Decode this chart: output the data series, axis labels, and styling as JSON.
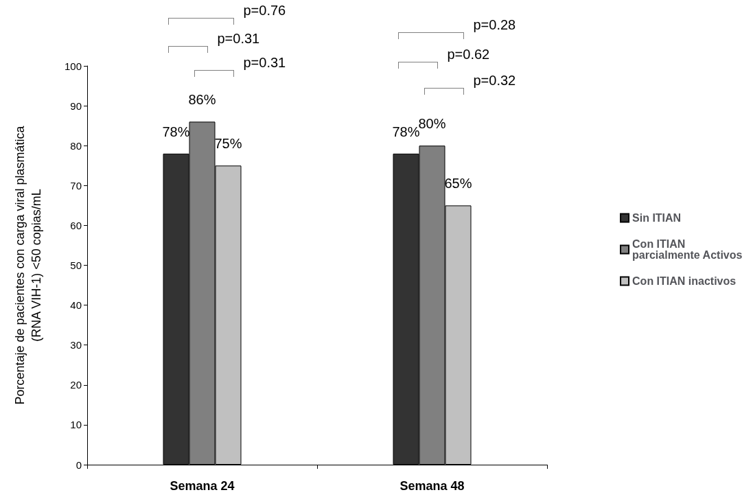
{
  "chart_data": {
    "type": "bar",
    "categories": [
      "Semana 24",
      "Semana 48"
    ],
    "ylabel": "Porcentaje de pacientes con carga viral plasmática\n(RNA VIH-1) <50 copias/mL",
    "series": [
      {
        "name": "Sin ITIAN",
        "color": "#333333",
        "values": [
          78,
          78
        ],
        "value_labels": [
          "78%",
          "78%"
        ]
      },
      {
        "name": "Con ITIAN parcialmente Activos",
        "color": "#808080",
        "values": [
          86,
          80
        ],
        "value_labels": [
          "86%",
          "80%"
        ]
      },
      {
        "name": "Con ITIAN inactivos",
        "color": "#c0c0c0",
        "values": [
          75,
          65
        ],
        "value_labels": [
          "75%",
          "65%"
        ]
      }
    ],
    "ylim": [
      0,
      100
    ],
    "yticks": [
      0,
      10,
      20,
      30,
      40,
      50,
      60,
      70,
      80,
      90,
      100
    ],
    "grid": false,
    "legend": "right",
    "annotations": [
      "p=0.76",
      "p=0.31",
      "p=0.31",
      "p=0.28",
      "p=0.62",
      "p=0.32"
    ]
  }
}
